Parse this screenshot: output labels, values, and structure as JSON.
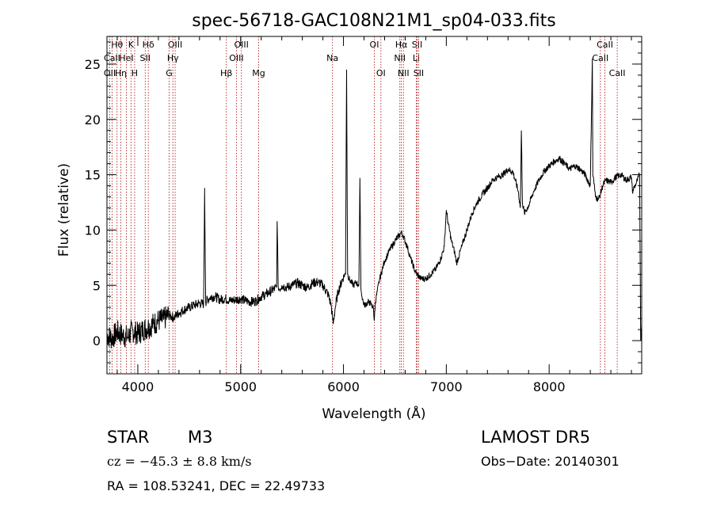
{
  "chart_data": {
    "type": "line",
    "title": "spec-56718-GAC108N21M1_sp04-033.fits",
    "xlabel": "Wavelength (Å)",
    "ylabel": "Flux (relative)",
    "xlim": [
      3700,
      8900
    ],
    "ylim": [
      -3,
      27.5
    ],
    "xticks": [
      4000,
      5000,
      6000,
      7000,
      8000
    ],
    "yticks": [
      0,
      5,
      10,
      15,
      20,
      25
    ],
    "grid": false,
    "line_markers": [
      {
        "label": "Hθ",
        "wave": 3798,
        "row": 0
      },
      {
        "label": "CaII",
        "wave": 3750,
        "row": 1
      },
      {
        "label": "OII",
        "wave": 3727,
        "row": 2
      },
      {
        "label": "K",
        "wave": 3934,
        "row": 0
      },
      {
        "label": "HeI",
        "wave": 3889,
        "row": 1
      },
      {
        "label": "Hη",
        "wave": 3835,
        "row": 2
      },
      {
        "label": "H",
        "wave": 3969,
        "row": 2
      },
      {
        "label": "Hδ",
        "wave": 4102,
        "row": 0
      },
      {
        "label": "SII",
        "wave": 4072,
        "row": 1
      },
      {
        "label": "OIII",
        "wave": 4363,
        "row": 0
      },
      {
        "label": "Hγ",
        "wave": 4341,
        "row": 1
      },
      {
        "label": "G",
        "wave": 4305,
        "row": 2
      },
      {
        "label": "OIII",
        "wave": 5007,
        "row": 0
      },
      {
        "label": "OIII",
        "wave": 4959,
        "row": 1
      },
      {
        "label": "Hβ",
        "wave": 4861,
        "row": 2
      },
      {
        "label": "Mg",
        "wave": 5175,
        "row": 2
      },
      {
        "label": "Na",
        "wave": 5893,
        "row": 1
      },
      {
        "label": "OI",
        "wave": 6300,
        "row": 0
      },
      {
        "label": "OI",
        "wave": 6364,
        "row": 2
      },
      {
        "label": "Hα",
        "wave": 6563,
        "row": 0
      },
      {
        "label": "NII",
        "wave": 6548,
        "row": 1
      },
      {
        "label": "NII",
        "wave": 6583,
        "row": 2
      },
      {
        "label": "SII",
        "wave": 6716,
        "row": 0
      },
      {
        "label": "Li",
        "wave": 6708,
        "row": 1
      },
      {
        "label": "SII",
        "wave": 6731,
        "row": 2
      },
      {
        "label": "CaII",
        "wave": 8542,
        "row": 0
      },
      {
        "label": "CaII",
        "wave": 8498,
        "row": 1
      },
      {
        "label": "CaII",
        "wave": 8662,
        "row": 2
      }
    ],
    "series": [
      {
        "x": [
          3700,
          3750,
          3800,
          3850,
          3900,
          3950,
          4000,
          4050,
          4100,
          4150,
          4200,
          4250,
          4300,
          4350,
          4400,
          4450,
          4500,
          4550,
          4600,
          4640,
          4650,
          4660,
          4700,
          4750,
          4800,
          4850,
          4900,
          4950,
          5000,
          5050,
          5100,
          5150,
          5200,
          5250,
          5300,
          5350,
          5355,
          5365,
          5375,
          5400,
          5450,
          5500,
          5550,
          5600,
          5650,
          5700,
          5750,
          5800,
          5850,
          5880,
          5900,
          5920,
          5950,
          6000,
          6020,
          6030,
          6040,
          6060,
          6080,
          6100,
          6120,
          6150,
          6160,
          6170,
          6180,
          6200,
          6250,
          6290,
          6300,
          6310,
          6350,
          6400,
          6450,
          6500,
          6550,
          6560,
          6580,
          6620,
          6650,
          6700,
          6750,
          6800,
          6850,
          6900,
          6950,
          6980,
          7000,
          7020,
          7050,
          7080,
          7100,
          7150,
          7200,
          7250,
          7300,
          7350,
          7400,
          7450,
          7500,
          7550,
          7600,
          7650,
          7700,
          7720,
          7730,
          7740,
          7760,
          7800,
          7850,
          7900,
          7950,
          8000,
          8050,
          8100,
          8150,
          8200,
          8250,
          8300,
          8350,
          8400,
          8420,
          8425,
          8430,
          8450,
          8480,
          8500,
          8520,
          8550,
          8600,
          8650,
          8700,
          8750,
          8800,
          8810,
          8850,
          8880,
          8890,
          8900
        ],
        "values": [
          0.5,
          0.2,
          0.8,
          0.5,
          0.3,
          0.9,
          0.6,
          1.0,
          1.2,
          1.5,
          1.8,
          1.9,
          2.3,
          2.1,
          2.5,
          2.8,
          3.0,
          3.2,
          3.4,
          3.3,
          13.8,
          3.5,
          3.9,
          4.0,
          3.7,
          3.8,
          3.6,
          3.7,
          3.8,
          3.6,
          3.5,
          3.6,
          4.0,
          4.2,
          4.5,
          4.8,
          10.8,
          5.0,
          4.6,
          5.0,
          4.8,
          5.0,
          5.2,
          5.0,
          4.8,
          5.2,
          5.3,
          5.0,
          4.2,
          3.2,
          1.5,
          3.0,
          4.5,
          5.8,
          6.0,
          24.5,
          6.0,
          5.5,
          5.2,
          5.0,
          5.3,
          5.0,
          14.7,
          4.6,
          4.0,
          3.2,
          3.5,
          3.0,
          1.8,
          3.5,
          5.5,
          7.2,
          8.2,
          9.0,
          9.6,
          9.8,
          9.5,
          8.5,
          7.5,
          6.2,
          5.6,
          5.6,
          6.0,
          6.5,
          7.5,
          8.5,
          11.8,
          10.5,
          9.0,
          8.0,
          7.0,
          8.5,
          10.0,
          11.5,
          12.5,
          13.2,
          13.8,
          14.5,
          14.8,
          15.0,
          15.5,
          15.2,
          13.5,
          12.0,
          19.0,
          12.5,
          11.5,
          12.2,
          13.5,
          14.5,
          15.3,
          15.8,
          16.2,
          16.5,
          16.0,
          15.5,
          15.8,
          15.5,
          15.0,
          14.0,
          25.5,
          15.0,
          14.8,
          13.0,
          12.8,
          13.3,
          14.0,
          14.5,
          14.3,
          14.8,
          15.0,
          14.5,
          14.8,
          13.5,
          14.3,
          15.0,
          0.0,
          1.5
        ]
      }
    ]
  },
  "footer": {
    "object_type": "STAR",
    "subclass": "M3",
    "survey": "LAMOST DR5",
    "cz": "cz = −45.3 ± 8.8 km/s",
    "obs_date": "Obs−Date: 20140301",
    "coords": "RA = 108.53241, DEC =  22.49733"
  }
}
